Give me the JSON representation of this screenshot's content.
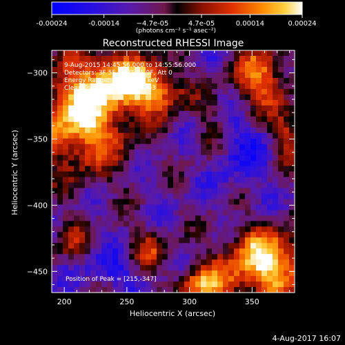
{
  "colorbar": {
    "tick_labels": [
      "-0.00024",
      "-0.00014",
      "−4.7e-05",
      "4.7e-05",
      "0.00014",
      "0.00024"
    ],
    "tick_values": [
      -0.00024,
      -0.00014,
      -4.7e-05,
      4.7e-05,
      0.00014,
      0.00024
    ],
    "range": [
      -0.00024,
      0.00024
    ],
    "unit_label": "(photons cm⁻² s⁻¹ asec⁻²)"
  },
  "chart_data": {
    "type": "heatmap",
    "title": "Reconstructed RHESSI Image",
    "xlabel": "Heliocentric X (arcsec)",
    "ylabel": "Heliocentric Y (arcsec)",
    "xlim": [
      190,
      384
    ],
    "ylim": [
      -466,
      -283
    ],
    "x_ticks": [
      200,
      250,
      300,
      350
    ],
    "y_ticks": [
      -300,
      -350,
      -400,
      -450
    ],
    "annotations": [
      "9-Aug-2015 14:45:56.000 to 14:55:56.000",
      "Detectors: 3F 5F 6F 7F 8F 9F, Att 0",
      "Energy Range: 12.0 - 25.0 keV",
      "Clean    Total counts: 8.10e+03"
    ],
    "peak_label": "Position of Peak = [215,-347]",
    "peak_position": [
      215,
      -347
    ],
    "value_range": [
      -0.00024,
      0.00024
    ]
  },
  "footer": {
    "timestamp": "4-Aug-2017 16:07"
  }
}
